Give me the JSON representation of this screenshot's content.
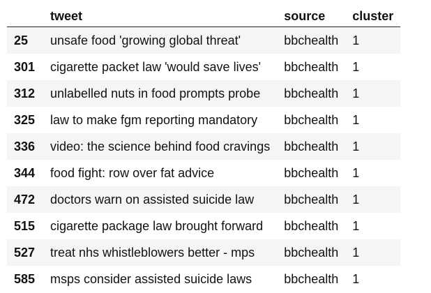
{
  "table": {
    "columns": [
      "",
      "tweet",
      "source",
      "cluster"
    ],
    "rows": [
      {
        "index": "25",
        "tweet": "unsafe food 'growing global threat'",
        "source": "bbchealth",
        "cluster": "1"
      },
      {
        "index": "301",
        "tweet": "cigarette packet law 'would save lives'",
        "source": "bbchealth",
        "cluster": "1"
      },
      {
        "index": "312",
        "tweet": "unlabelled nuts in food prompts probe",
        "source": "bbchealth",
        "cluster": "1"
      },
      {
        "index": "325",
        "tweet": "law to make fgm reporting mandatory",
        "source": "bbchealth",
        "cluster": "1"
      },
      {
        "index": "336",
        "tweet": "video: the science behind food cravings",
        "source": "bbchealth",
        "cluster": "1"
      },
      {
        "index": "344",
        "tweet": "food fight: row over fat advice",
        "source": "bbchealth",
        "cluster": "1"
      },
      {
        "index": "472",
        "tweet": "doctors warn on assisted suicide law",
        "source": "bbchealth",
        "cluster": "1"
      },
      {
        "index": "515",
        "tweet": "cigarette package law brought forward",
        "source": "bbchealth",
        "cluster": "1"
      },
      {
        "index": "527",
        "tweet": "treat nhs whistleblowers better - mps",
        "source": "bbchealth",
        "cluster": "1"
      },
      {
        "index": "585",
        "tweet": "msps consider assisted suicide laws",
        "source": "bbchealth",
        "cluster": "1"
      }
    ]
  }
}
